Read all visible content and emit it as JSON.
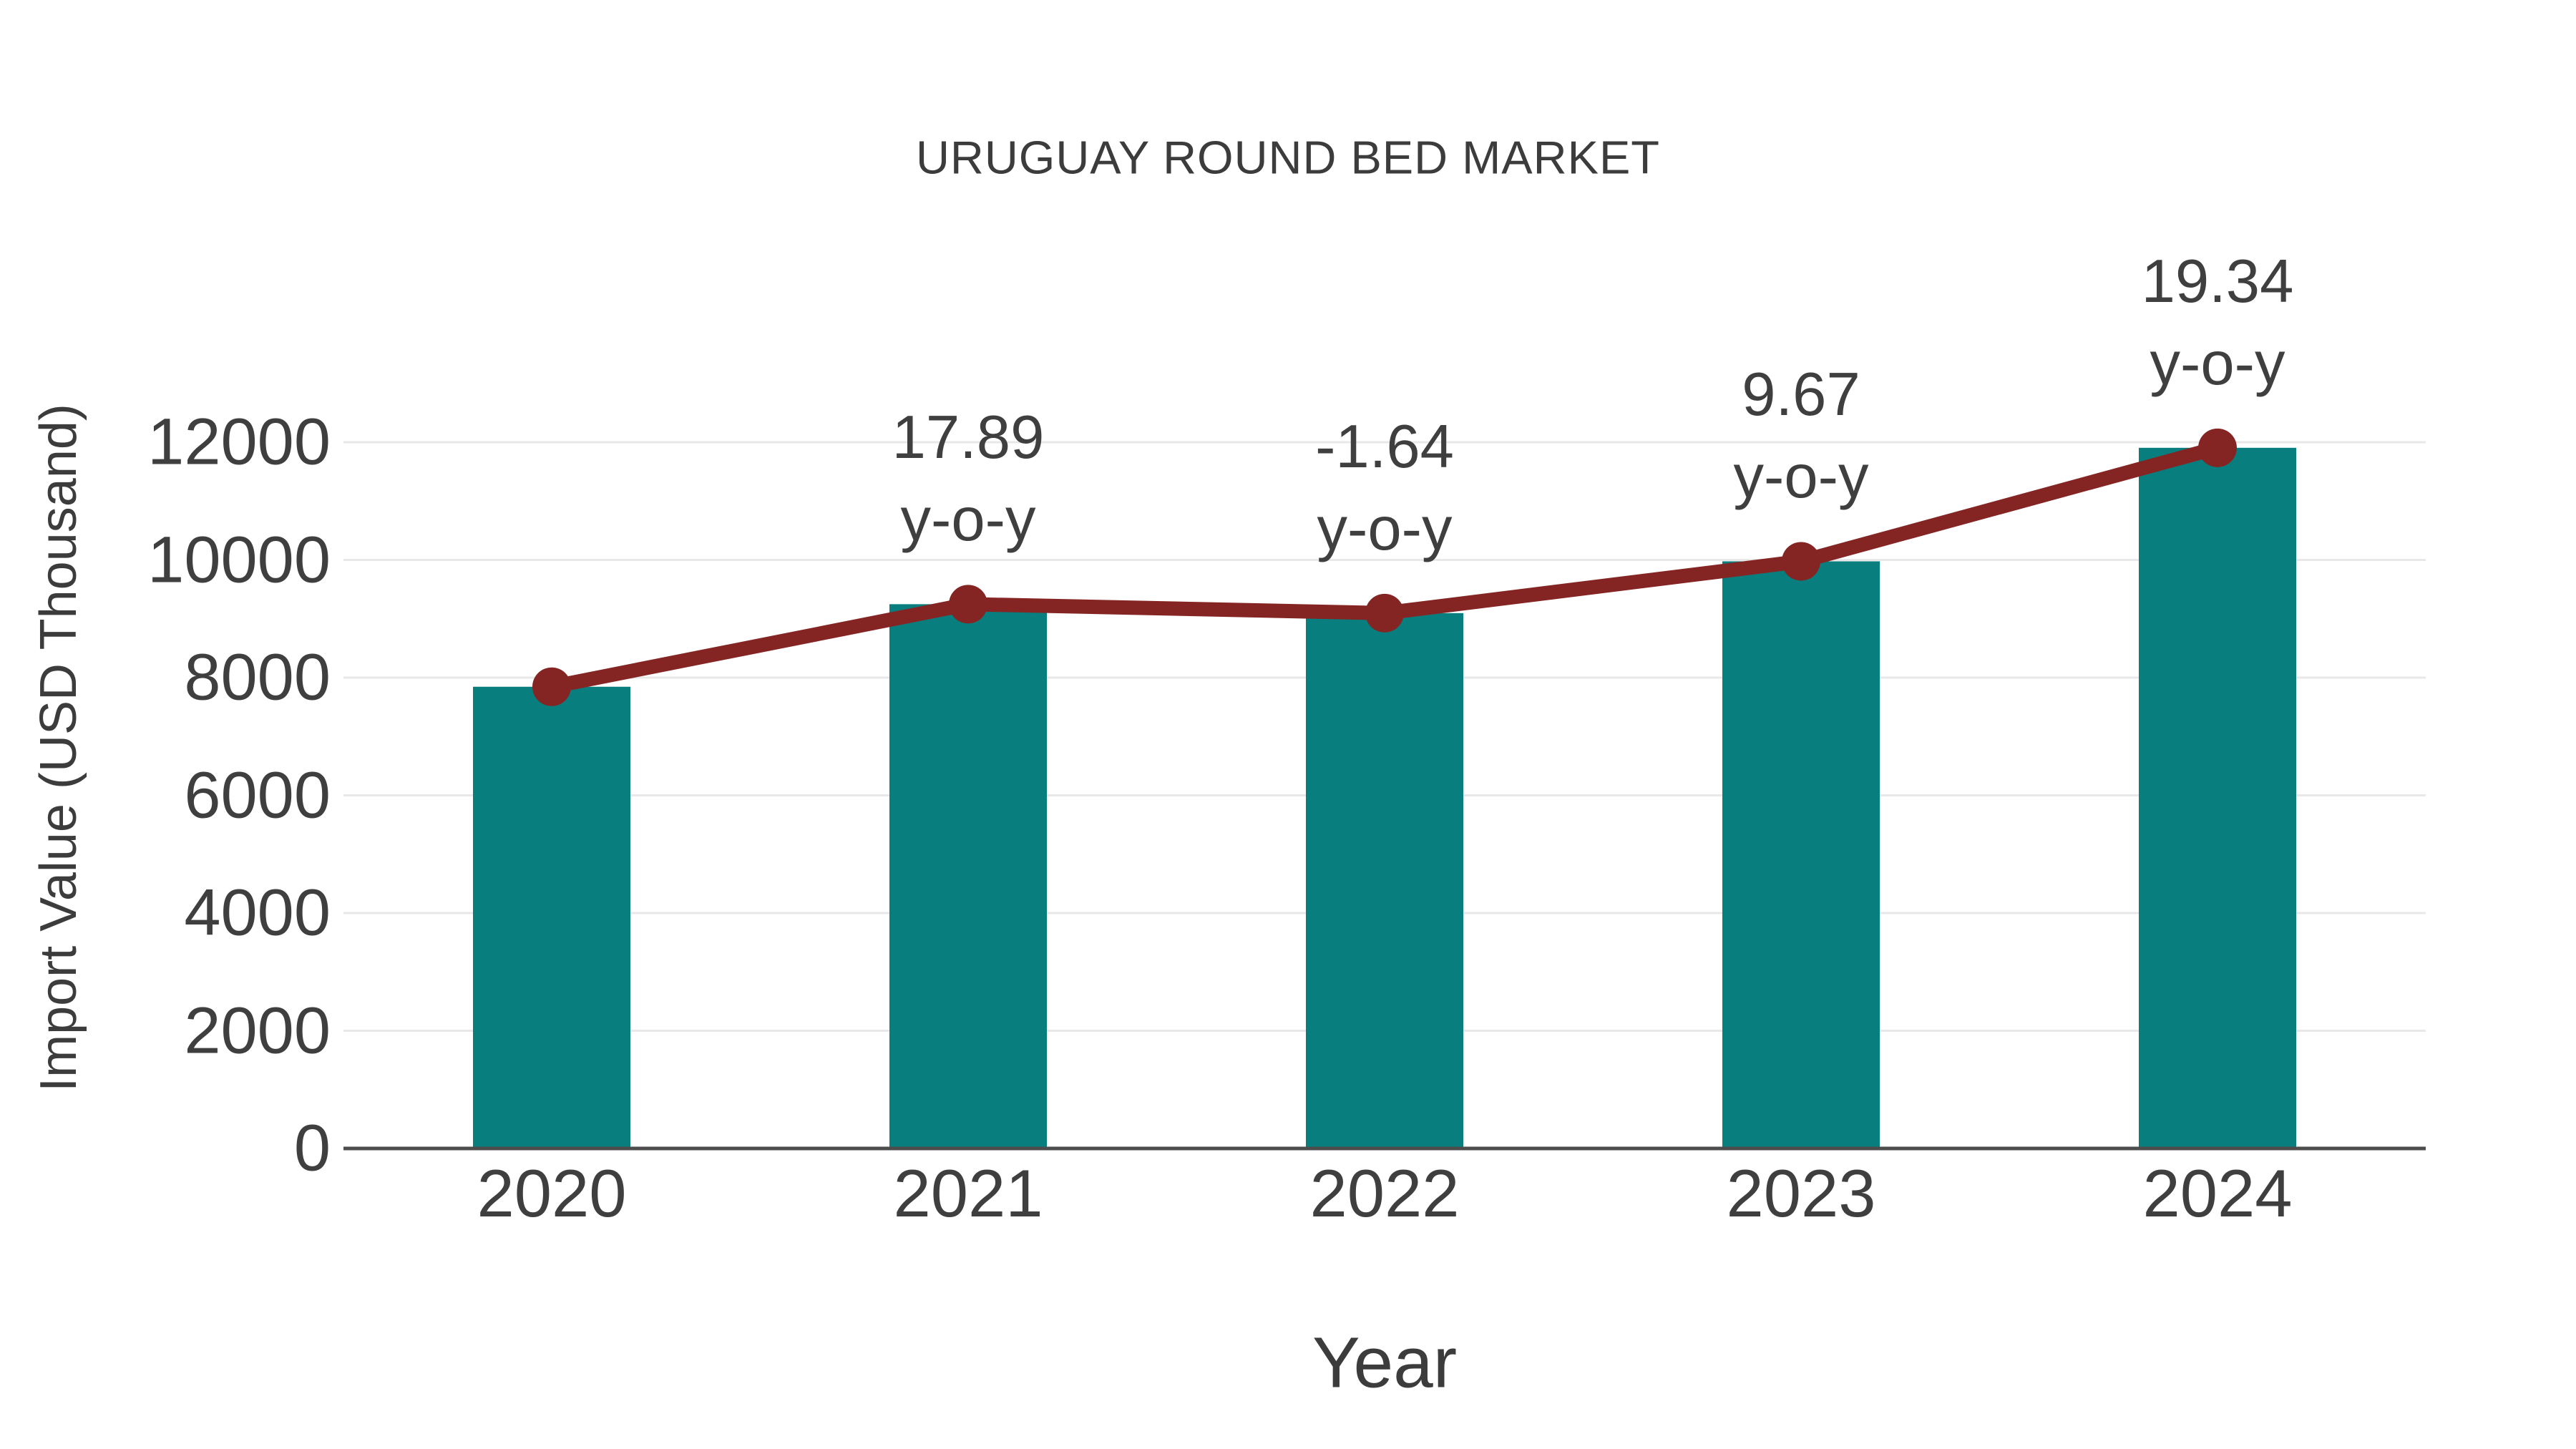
{
  "chart_data": {
    "type": "bar",
    "title": "URUGUAY ROUND BED MARKET",
    "xlabel": "Year",
    "ylabel": "Import Value (USD Thousand)",
    "categories": [
      "2020",
      "2021",
      "2022",
      "2023",
      "2024"
    ],
    "series": [
      {
        "name": "import-value-bars",
        "type": "bar",
        "values": [
          7845,
          9248,
          9096,
          9976,
          11905
        ]
      },
      {
        "name": "import-value-trend-line",
        "type": "line",
        "values": [
          7845,
          9248,
          9096,
          9976,
          11905
        ]
      }
    ],
    "annotations": [
      {
        "category": "2021",
        "line1": "17.89",
        "line2": "y-o-y"
      },
      {
        "category": "2022",
        "line1": "-1.64",
        "line2": "y-o-y"
      },
      {
        "category": "2023",
        "line1": "9.67",
        "line2": "y-o-y"
      },
      {
        "category": "2024",
        "line1": "19.34",
        "line2": "y-o-y"
      }
    ],
    "y_ticks": [
      0,
      2000,
      4000,
      6000,
      8000,
      10000,
      12000
    ],
    "ylim": [
      0,
      12000
    ],
    "grid": true,
    "legend_position": "none",
    "colors": {
      "bar": "#087F7E",
      "line": "#852523",
      "marker": "#852523",
      "text": "#3F3F3F",
      "grid": "#E8E8E8",
      "axis": "#4D4D4D",
      "background": "#FFFFFF"
    }
  }
}
